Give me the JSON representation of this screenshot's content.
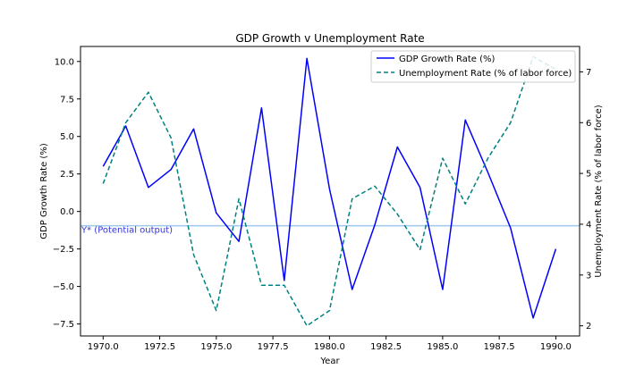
{
  "chart_data": {
    "type": "line",
    "title": "GDP Growth v Unemployment Rate",
    "xlabel": "Year",
    "ylabel_left": "GDP Growth Rate (%)",
    "ylabel_right": "Unemployment Rate (% of labor force)",
    "xlim": [
      1969.0,
      1991.05
    ],
    "ylim_left": [
      -8.3,
      11.0
    ],
    "ylim_right": [
      1.8,
      7.5
    ],
    "x_ticks": [
      1970.0,
      1972.5,
      1975.0,
      1977.5,
      1980.0,
      1982.5,
      1985.0,
      1987.5,
      1990.0
    ],
    "x_tick_labels": [
      "1970.0",
      "1972.5",
      "1975.0",
      "1977.5",
      "1980.0",
      "1982.5",
      "1985.0",
      "1987.5",
      "1990.0"
    ],
    "y_left_ticks": [
      -7.5,
      -5.0,
      -2.5,
      0.0,
      2.5,
      5.0,
      7.5,
      10.0
    ],
    "y_left_tick_labels": [
      "−7.5",
      "−5.0",
      "−2.5",
      "0.0",
      "2.5",
      "5.0",
      "7.5",
      "10.0"
    ],
    "y_right_ticks": [
      2,
      3,
      4,
      5,
      6,
      7
    ],
    "y_right_tick_labels": [
      "2",
      "3",
      "4",
      "5",
      "6",
      "7"
    ],
    "x": [
      1970,
      1971,
      1972,
      1973,
      1974,
      1975,
      1976,
      1977,
      1978,
      1979,
      1980,
      1981,
      1982,
      1983,
      1984,
      1985,
      1986,
      1987,
      1988,
      1989,
      1990
    ],
    "series": [
      {
        "name": "GDP Growth Rate (%)",
        "axis": "left",
        "style": "solid",
        "color": "#0000ff",
        "values": [
          3.0,
          5.7,
          1.6,
          2.8,
          5.5,
          -0.1,
          -2.0,
          6.9,
          -4.6,
          10.2,
          1.5,
          -5.2,
          -0.9,
          4.3,
          1.6,
          -5.2,
          6.1,
          2.6,
          -1.1,
          -7.1,
          -2.5
        ]
      },
      {
        "name": "Unemployment Rate (% of labor force)",
        "axis": "right",
        "style": "dashed",
        "color": "#008080",
        "values": [
          4.8,
          6.0,
          6.6,
          5.7,
          3.4,
          2.3,
          4.5,
          2.8,
          2.8,
          2.0,
          2.3,
          4.5,
          4.75,
          4.2,
          3.5,
          5.3,
          4.4,
          5.3,
          6.0,
          7.3,
          7.05
        ]
      }
    ],
    "reference_line": {
      "label": "Y* (Potential output)",
      "axis": "left",
      "value": -0.95,
      "color": "#9ec8ec",
      "label_color": "#3333dd"
    },
    "legend": {
      "placement": "top-right",
      "entries": [
        "GDP Growth Rate (%)",
        "Unemployment Rate (% of labor force)"
      ]
    },
    "grid": false
  }
}
